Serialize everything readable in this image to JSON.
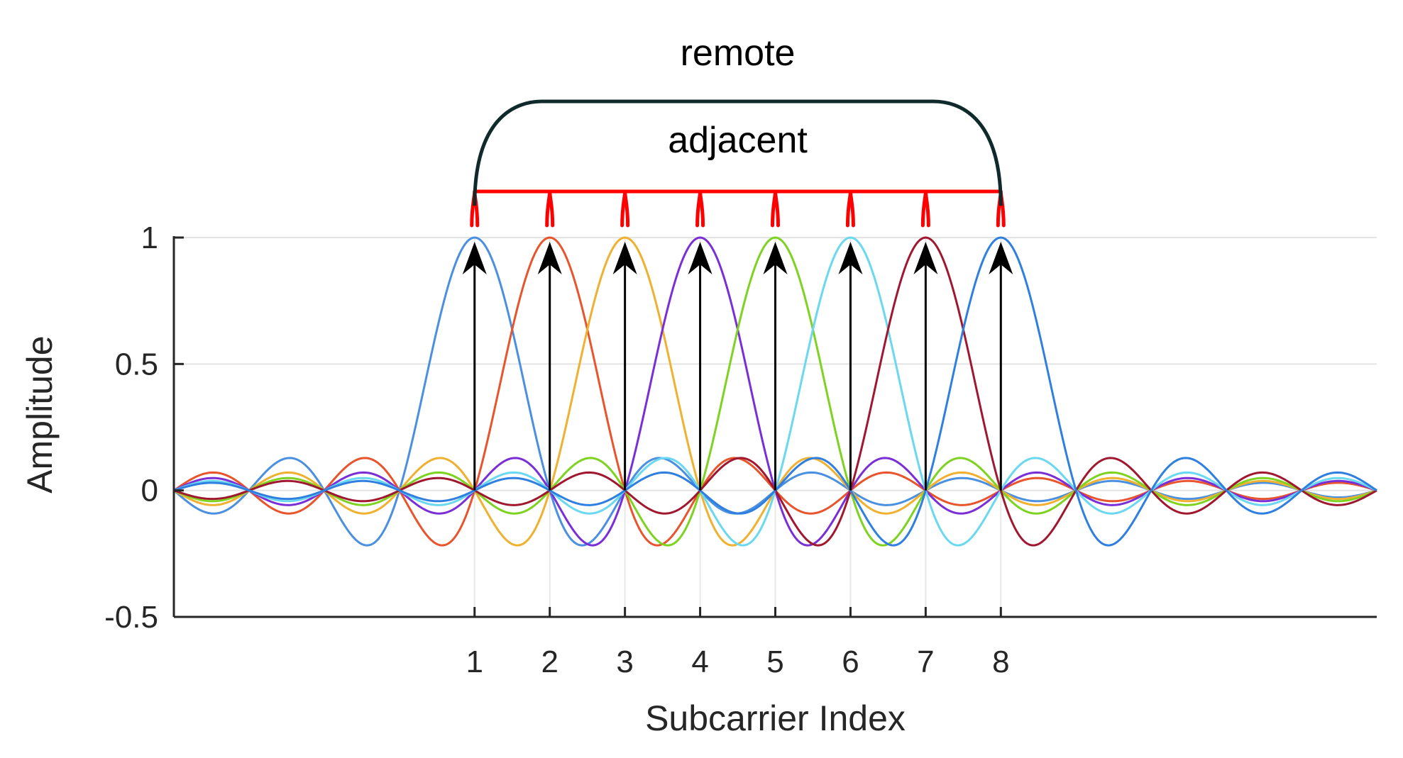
{
  "chart_data": {
    "type": "line",
    "title": "",
    "xlabel": "Subcarrier Index",
    "ylabel": "Amplitude",
    "xlim": [
      -3,
      13
    ],
    "ylim": [
      -0.5,
      1
    ],
    "x_tick_labels": [
      "1",
      "2",
      "3",
      "4",
      "5",
      "6",
      "7",
      "8"
    ],
    "y_tick_labels": [
      "-0.5",
      "0",
      "0.5",
      "1"
    ],
    "grid": true,
    "legend": "none",
    "series": [
      {
        "center": 1,
        "peak": 1,
        "color": "#4a8fe0"
      },
      {
        "center": 2,
        "peak": 1,
        "color": "#e8542c"
      },
      {
        "center": 3,
        "peak": 1,
        "color": "#f0b030"
      },
      {
        "center": 4,
        "peak": 1,
        "color": "#7a2fd6"
      },
      {
        "center": 5,
        "peak": 1,
        "color": "#7ed321"
      },
      {
        "center": 6,
        "peak": 1,
        "color": "#6ad8f0"
      },
      {
        "center": 7,
        "peak": 1,
        "color": "#a01830"
      },
      {
        "center": 8,
        "peak": 1,
        "color": "#2f7fe0"
      }
    ],
    "stems": [
      1,
      2,
      3,
      4,
      5,
      6,
      7,
      8
    ],
    "annotations": {
      "remote": "remote",
      "adjacent": "adjacent",
      "remote_span": [
        1,
        8
      ],
      "adjacent_span": [
        1,
        8
      ],
      "remote_color": "#102a2c",
      "adjacent_color": "#ff0000"
    }
  }
}
